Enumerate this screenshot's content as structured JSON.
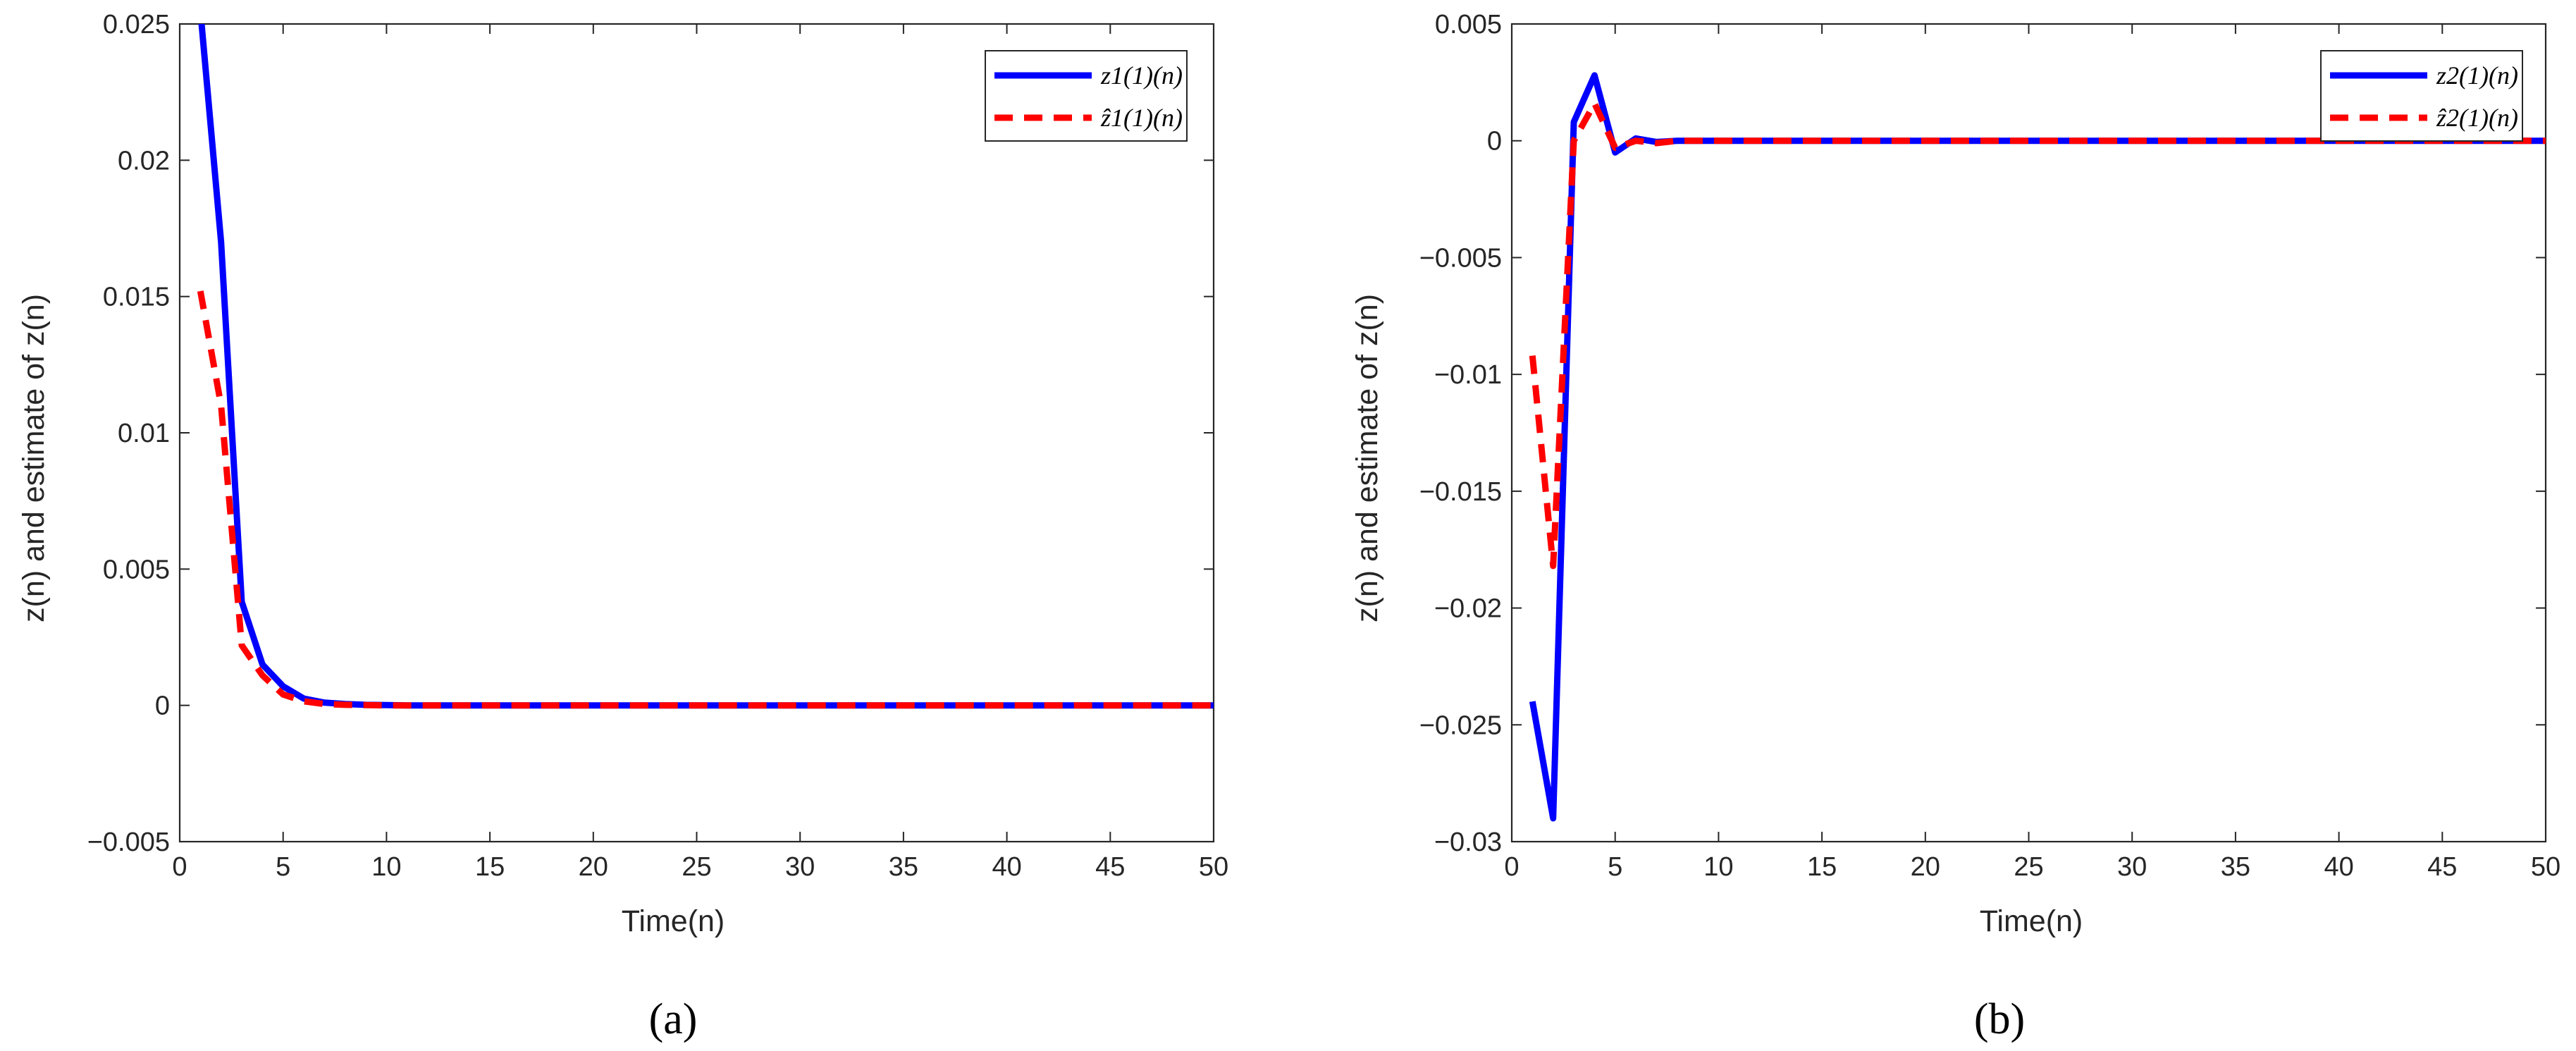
{
  "colors": {
    "series_solid": "#0000ff",
    "series_dashed": "#ff0000",
    "axes": "#262626"
  },
  "chart_data": [
    {
      "type": "line",
      "panel_label": "(a)",
      "xlabel": "Time(n)",
      "ylabel": "z(n) and estimate of z(n)",
      "xlim": [
        0,
        50
      ],
      "ylim": [
        -0.005,
        0.025
      ],
      "xticks": [
        0,
        5,
        10,
        15,
        20,
        25,
        30,
        35,
        40,
        45,
        50
      ],
      "xtick_labels": [
        "0",
        "5",
        "10",
        "15",
        "20",
        "25",
        "30",
        "35",
        "40",
        "45",
        "50"
      ],
      "yticks": [
        -0.005,
        0,
        0.005,
        0.01,
        0.015,
        0.02,
        0.025
      ],
      "ytick_labels": [
        "−0.005",
        "0",
        "0.005",
        "0.01",
        "0.015",
        "0.02",
        "0.025"
      ],
      "grid": false,
      "legend": "top-right",
      "series": [
        {
          "name": "z_1^{(1)}(n)",
          "legend_label": "z1(1)(n)",
          "style": "solid",
          "x": [
            1,
            2,
            3,
            4,
            5,
            6,
            7,
            8,
            9,
            10,
            11,
            12,
            13,
            14,
            15,
            16,
            17,
            18,
            19,
            20,
            21,
            22,
            23,
            24,
            25,
            26,
            27,
            28,
            29,
            30,
            31,
            32,
            33,
            34,
            35,
            36,
            37,
            38,
            39,
            40,
            41,
            42,
            43,
            44,
            45,
            46,
            47,
            48,
            49,
            50
          ],
          "values": [
            0.0255,
            0.017,
            0.0038,
            0.0015,
            0.0007,
            0.00025,
            0.0001,
            5e-05,
            2e-05,
            1e-05,
            0,
            0,
            0,
            0,
            0,
            0,
            0,
            0,
            0,
            0,
            0,
            0,
            0,
            0,
            0,
            0,
            0,
            0,
            0,
            0,
            0,
            0,
            0,
            0,
            0,
            0,
            0,
            0,
            0,
            0,
            0,
            0,
            0,
            0,
            0,
            0,
            0,
            0,
            0,
            0
          ]
        },
        {
          "name": "ẑ_1^{(1)}(n)",
          "legend_label": "ẑ1(1)(n)",
          "style": "dashed",
          "x": [
            1,
            2,
            3,
            4,
            5,
            6,
            7,
            8,
            9,
            10,
            11,
            12,
            13,
            14,
            15,
            16,
            17,
            18,
            19,
            20,
            21,
            22,
            23,
            24,
            25,
            26,
            27,
            28,
            29,
            30,
            31,
            32,
            33,
            34,
            35,
            36,
            37,
            38,
            39,
            40,
            41,
            42,
            43,
            44,
            45,
            46,
            47,
            48,
            49,
            50
          ],
          "values": [
            0.0152,
            0.011,
            0.0022,
            0.0011,
            0.0004,
            0.00015,
            5e-05,
            2e-05,
            1e-05,
            0,
            0,
            0,
            0,
            0,
            0,
            0,
            0,
            0,
            0,
            0,
            0,
            0,
            0,
            0,
            0,
            0,
            0,
            0,
            0,
            0,
            0,
            0,
            0,
            0,
            0,
            0,
            0,
            0,
            0,
            0,
            0,
            0,
            0,
            0,
            0,
            0,
            0,
            0,
            0,
            0
          ]
        }
      ]
    },
    {
      "type": "line",
      "panel_label": "(b)",
      "xlabel": "Time(n)",
      "ylabel": "z(n) and estimate of z(n)",
      "xlim": [
        0,
        50
      ],
      "ylim": [
        -0.03,
        0.005
      ],
      "xticks": [
        0,
        5,
        10,
        15,
        20,
        25,
        30,
        35,
        40,
        45,
        50
      ],
      "xtick_labels": [
        "0",
        "5",
        "10",
        "15",
        "20",
        "25",
        "30",
        "35",
        "40",
        "45",
        "50"
      ],
      "yticks": [
        -0.03,
        -0.025,
        -0.02,
        -0.015,
        -0.01,
        -0.005,
        0,
        0.005
      ],
      "ytick_labels": [
        "−0.03",
        "−0.025",
        "−0.02",
        "−0.015",
        "−0.01",
        "−0.005",
        "0",
        "0.005"
      ],
      "grid": false,
      "legend": "top-right",
      "series": [
        {
          "name": "z_2^{(1)}(n)",
          "legend_label": "z2(1)(n)",
          "style": "solid",
          "x": [
            1,
            2,
            3,
            4,
            5,
            6,
            7,
            8,
            9,
            10,
            11,
            12,
            13,
            14,
            15,
            16,
            17,
            18,
            19,
            20,
            21,
            22,
            23,
            24,
            25,
            26,
            27,
            28,
            29,
            30,
            31,
            32,
            33,
            34,
            35,
            36,
            37,
            38,
            39,
            40,
            41,
            42,
            43,
            44,
            45,
            46,
            47,
            48,
            49,
            50
          ],
          "values": [
            -0.024,
            -0.029,
            0.0008,
            0.0028,
            -0.0005,
            0.0001,
            -5e-05,
            0,
            0,
            0,
            0,
            0,
            0,
            0,
            0,
            0,
            0,
            0,
            0,
            0,
            0,
            0,
            0,
            0,
            0,
            0,
            0,
            0,
            0,
            0,
            0,
            0,
            0,
            0,
            0,
            0,
            0,
            0,
            0,
            0,
            0,
            0,
            0,
            0,
            0,
            0,
            0,
            0,
            0,
            0
          ]
        },
        {
          "name": "ẑ_2^{(1)}(n)",
          "legend_label": "ẑ2(1)(n)",
          "style": "dashed",
          "x": [
            1,
            2,
            3,
            4,
            5,
            6,
            7,
            8,
            9,
            10,
            11,
            12,
            13,
            14,
            15,
            16,
            17,
            18,
            19,
            20,
            21,
            22,
            23,
            24,
            25,
            26,
            27,
            28,
            29,
            30,
            31,
            32,
            33,
            34,
            35,
            36,
            37,
            38,
            39,
            40,
            41,
            42,
            43,
            44,
            45,
            46,
            47,
            48,
            49,
            50
          ],
          "values": [
            -0.0092,
            -0.0182,
            0,
            0.0016,
            -0.0003,
            0,
            -0.0001,
            0,
            0,
            0,
            0,
            0,
            0,
            0,
            0,
            0,
            0,
            0,
            0,
            0,
            0,
            0,
            0,
            0,
            0,
            0,
            0,
            0,
            0,
            0,
            0,
            0,
            0,
            0,
            0,
            0,
            0,
            0,
            0,
            0,
            0,
            0,
            0,
            0,
            0,
            0,
            0,
            0,
            0,
            0
          ]
        }
      ]
    }
  ]
}
